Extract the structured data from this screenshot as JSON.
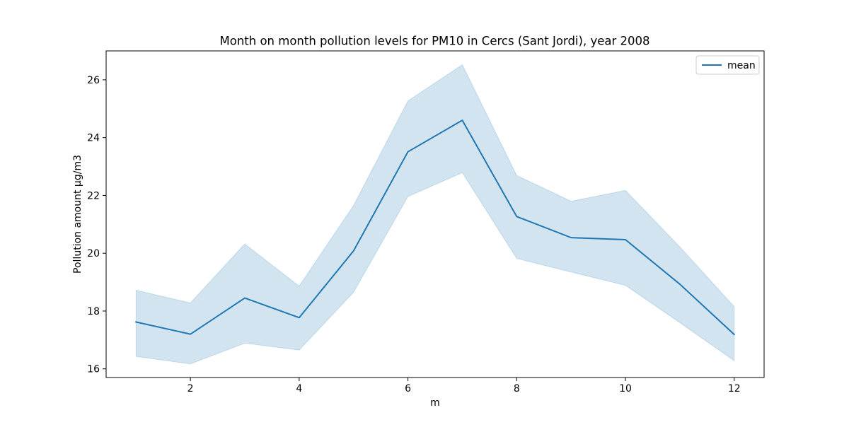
{
  "chart_data": {
    "type": "line",
    "title": "Month on month pollution levels for PM10 in Cercs (Sant Jordi), year 2008",
    "xlabel": "m",
    "ylabel": "Pollution amount µg/m3",
    "xlim": [
      0.45,
      12.55
    ],
    "ylim": [
      15.7,
      27.0
    ],
    "x_ticks": [
      2,
      4,
      6,
      8,
      10,
      12
    ],
    "y_ticks": [
      16,
      18,
      20,
      22,
      24,
      26
    ],
    "grid": false,
    "legend_position": "upper right",
    "series": [
      {
        "name": "mean",
        "color": "#1f77b4",
        "x": [
          1,
          2,
          3,
          4,
          5,
          6,
          7,
          8,
          9,
          10,
          11,
          12
        ],
        "y": [
          17.62,
          17.2,
          18.45,
          17.77,
          20.08,
          23.51,
          24.6,
          21.27,
          20.54,
          20.47,
          18.93,
          17.19
        ],
        "band_low": [
          16.43,
          16.17,
          16.89,
          16.65,
          18.65,
          21.96,
          22.79,
          19.82,
          19.35,
          18.89,
          17.6,
          16.28
        ],
        "band_high": [
          18.72,
          18.28,
          20.32,
          18.86,
          21.65,
          25.27,
          26.52,
          22.69,
          21.8,
          22.17,
          20.22,
          18.15
        ]
      }
    ]
  }
}
